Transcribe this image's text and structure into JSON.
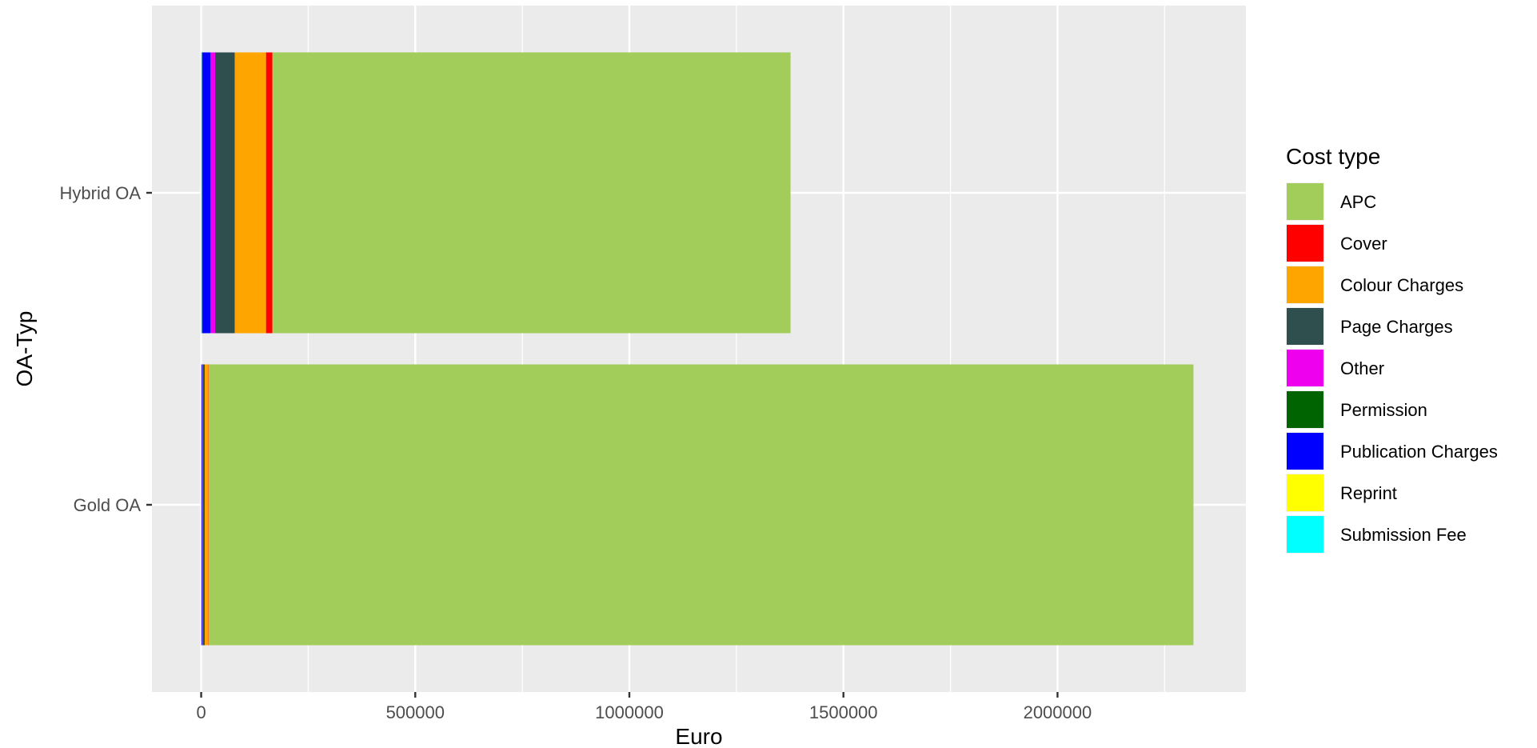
{
  "chart_data": {
    "type": "bar",
    "orientation": "horizontal",
    "stacked": true,
    "xlabel": "Euro",
    "ylabel": "OA-Typ",
    "xlim": [
      -115000,
      2440000
    ],
    "x_ticks": [
      0,
      500000,
      1000000,
      1500000,
      2000000
    ],
    "x_tick_labels": [
      "0",
      "500000",
      "1000000",
      "1500000",
      "2000000"
    ],
    "categories": [
      "Hybrid OA",
      "Gold OA"
    ],
    "legend": {
      "title": "Cost type",
      "position": "right",
      "items": [
        "APC",
        "Cover",
        "Colour Charges",
        "Page Charges",
        "Other",
        "Permission",
        "Publication Charges",
        "Reprint",
        "Submission Fee"
      ]
    },
    "series": [
      {
        "name": "Submission Fee",
        "color": "#00FFFF",
        "values": [
          1500,
          300
        ]
      },
      {
        "name": "Reprint",
        "color": "#FFFF00",
        "values": [
          500,
          200
        ]
      },
      {
        "name": "Publication Charges",
        "color": "#0000FF",
        "values": [
          20000,
          1500
        ]
      },
      {
        "name": "Permission",
        "color": "#006400",
        "values": [
          500,
          300
        ]
      },
      {
        "name": "Other",
        "color": "#EE00EE",
        "values": [
          10000,
          2000
        ]
      },
      {
        "name": "Page Charges",
        "color": "#2F4F4F",
        "values": [
          46000,
          4000
        ]
      },
      {
        "name": "Colour Charges",
        "color": "#FFA500",
        "values": [
          73000,
          8500
        ]
      },
      {
        "name": "Cover",
        "color": "#FF0000",
        "values": [
          15000,
          700
        ]
      },
      {
        "name": "APC",
        "color": "#A2CD5A",
        "values": [
          1210000,
          2300000
        ]
      }
    ],
    "panel_background": "#EBEBEB",
    "grid": true
  }
}
